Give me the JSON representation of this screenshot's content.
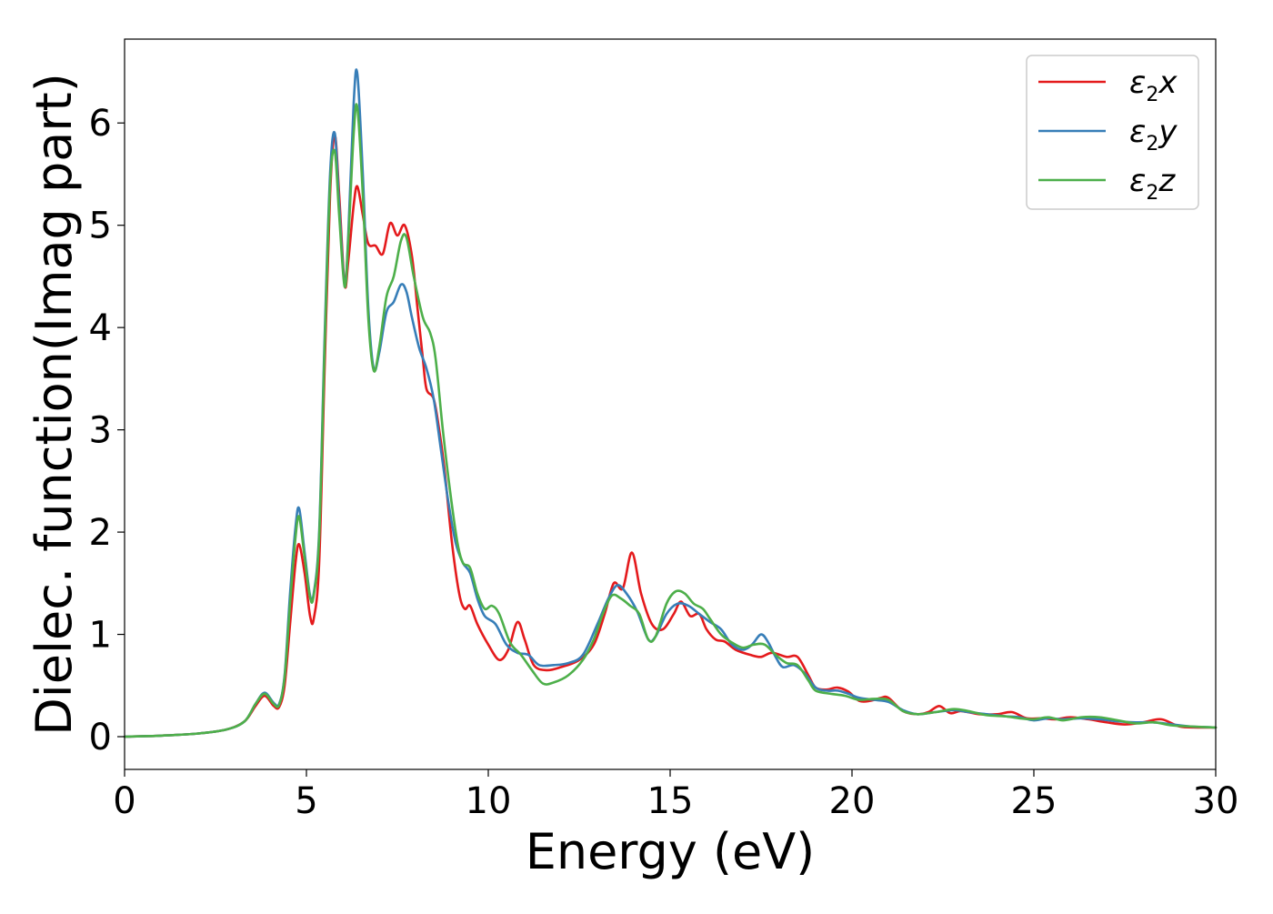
{
  "chart_data": {
    "type": "line",
    "title": "",
    "xlabel": "Energy (eV)",
    "ylabel": "Dielec. function(Imag part)",
    "xlim": [
      0,
      30
    ],
    "ylim": [
      -0.32,
      6.82
    ],
    "xticks": [
      0,
      5,
      10,
      15,
      20,
      25,
      30
    ],
    "yticks": [
      0,
      1,
      2,
      3,
      4,
      5,
      6
    ],
    "grid": false,
    "legend_position": "top-right",
    "series": [
      {
        "name": "ε2x",
        "legend": {
          "base": "ε",
          "sub": "2",
          "var": "x"
        },
        "color": "#e41a1c",
        "points": [
          [
            0,
            0.0
          ],
          [
            1,
            0.01
          ],
          [
            2,
            0.03
          ],
          [
            2.8,
            0.07
          ],
          [
            3.3,
            0.15
          ],
          [
            3.6,
            0.3
          ],
          [
            3.85,
            0.4
          ],
          [
            4.1,
            0.3
          ],
          [
            4.25,
            0.29
          ],
          [
            4.4,
            0.5
          ],
          [
            4.55,
            1.1
          ],
          [
            4.7,
            1.7
          ],
          [
            4.8,
            1.88
          ],
          [
            4.95,
            1.6
          ],
          [
            5.1,
            1.18
          ],
          [
            5.2,
            1.15
          ],
          [
            5.35,
            1.7
          ],
          [
            5.5,
            3.6
          ],
          [
            5.65,
            5.3
          ],
          [
            5.78,
            5.88
          ],
          [
            5.9,
            5.3
          ],
          [
            6.05,
            4.42
          ],
          [
            6.15,
            4.65
          ],
          [
            6.3,
            5.2
          ],
          [
            6.4,
            5.38
          ],
          [
            6.55,
            5.1
          ],
          [
            6.7,
            4.82
          ],
          [
            6.9,
            4.8
          ],
          [
            7.1,
            4.72
          ],
          [
            7.3,
            5.02
          ],
          [
            7.5,
            4.9
          ],
          [
            7.7,
            5.0
          ],
          [
            7.9,
            4.7
          ],
          [
            8.05,
            4.2
          ],
          [
            8.2,
            3.7
          ],
          [
            8.3,
            3.4
          ],
          [
            8.5,
            3.3
          ],
          [
            8.65,
            3.0
          ],
          [
            8.8,
            2.6
          ],
          [
            9.0,
            1.9
          ],
          [
            9.2,
            1.4
          ],
          [
            9.35,
            1.25
          ],
          [
            9.5,
            1.28
          ],
          [
            9.7,
            1.1
          ],
          [
            10.0,
            0.9
          ],
          [
            10.3,
            0.75
          ],
          [
            10.55,
            0.85
          ],
          [
            10.8,
            1.12
          ],
          [
            11.0,
            0.95
          ],
          [
            11.25,
            0.7
          ],
          [
            11.6,
            0.65
          ],
          [
            12.0,
            0.68
          ],
          [
            12.5,
            0.75
          ],
          [
            12.9,
            0.9
          ],
          [
            13.2,
            1.2
          ],
          [
            13.45,
            1.5
          ],
          [
            13.7,
            1.45
          ],
          [
            13.95,
            1.8
          ],
          [
            14.2,
            1.4
          ],
          [
            14.5,
            1.1
          ],
          [
            14.8,
            1.05
          ],
          [
            15.1,
            1.2
          ],
          [
            15.3,
            1.32
          ],
          [
            15.55,
            1.18
          ],
          [
            15.8,
            1.2
          ],
          [
            16.0,
            1.05
          ],
          [
            16.25,
            0.95
          ],
          [
            16.5,
            0.93
          ],
          [
            16.8,
            0.85
          ],
          [
            17.2,
            0.8
          ],
          [
            17.5,
            0.78
          ],
          [
            17.8,
            0.82
          ],
          [
            18.2,
            0.78
          ],
          [
            18.5,
            0.78
          ],
          [
            18.8,
            0.6
          ],
          [
            19.0,
            0.48
          ],
          [
            19.3,
            0.46
          ],
          [
            19.6,
            0.48
          ],
          [
            19.9,
            0.44
          ],
          [
            20.2,
            0.35
          ],
          [
            20.5,
            0.35
          ],
          [
            20.8,
            0.38
          ],
          [
            21.0,
            0.38
          ],
          [
            21.4,
            0.25
          ],
          [
            21.8,
            0.22
          ],
          [
            22.1,
            0.24
          ],
          [
            22.4,
            0.3
          ],
          [
            22.7,
            0.23
          ],
          [
            23.0,
            0.25
          ],
          [
            23.5,
            0.22
          ],
          [
            24.0,
            0.22
          ],
          [
            24.4,
            0.24
          ],
          [
            24.8,
            0.18
          ],
          [
            25.2,
            0.18
          ],
          [
            25.6,
            0.17
          ],
          [
            26.0,
            0.19
          ],
          [
            26.5,
            0.17
          ],
          [
            27.0,
            0.14
          ],
          [
            27.5,
            0.12
          ],
          [
            28.0,
            0.14
          ],
          [
            28.5,
            0.17
          ],
          [
            29.0,
            0.1
          ],
          [
            29.5,
            0.09
          ],
          [
            30.0,
            0.09
          ]
        ]
      },
      {
        "name": "ε2y",
        "legend": {
          "base": "ε",
          "sub": "2",
          "var": "y"
        },
        "color": "#377eb8",
        "points": [
          [
            0,
            0.0
          ],
          [
            1,
            0.01
          ],
          [
            2,
            0.03
          ],
          [
            2.8,
            0.07
          ],
          [
            3.3,
            0.15
          ],
          [
            3.6,
            0.32
          ],
          [
            3.85,
            0.43
          ],
          [
            4.1,
            0.33
          ],
          [
            4.25,
            0.32
          ],
          [
            4.4,
            0.6
          ],
          [
            4.55,
            1.4
          ],
          [
            4.7,
            2.05
          ],
          [
            4.8,
            2.23
          ],
          [
            4.95,
            1.8
          ],
          [
            5.1,
            1.38
          ],
          [
            5.2,
            1.4
          ],
          [
            5.35,
            2.0
          ],
          [
            5.5,
            3.9
          ],
          [
            5.65,
            5.5
          ],
          [
            5.78,
            5.9
          ],
          [
            5.9,
            5.2
          ],
          [
            6.05,
            4.42
          ],
          [
            6.15,
            4.9
          ],
          [
            6.3,
            6.2
          ],
          [
            6.4,
            6.48
          ],
          [
            6.55,
            5.5
          ],
          [
            6.7,
            4.2
          ],
          [
            6.85,
            3.6
          ],
          [
            7.0,
            3.75
          ],
          [
            7.2,
            4.15
          ],
          [
            7.4,
            4.25
          ],
          [
            7.6,
            4.42
          ],
          [
            7.75,
            4.35
          ],
          [
            7.9,
            4.1
          ],
          [
            8.1,
            3.8
          ],
          [
            8.3,
            3.6
          ],
          [
            8.5,
            3.3
          ],
          [
            8.7,
            2.8
          ],
          [
            8.9,
            2.3
          ],
          [
            9.1,
            1.9
          ],
          [
            9.3,
            1.7
          ],
          [
            9.5,
            1.6
          ],
          [
            9.7,
            1.35
          ],
          [
            9.9,
            1.18
          ],
          [
            10.2,
            1.1
          ],
          [
            10.5,
            0.9
          ],
          [
            10.8,
            0.82
          ],
          [
            11.1,
            0.8
          ],
          [
            11.4,
            0.7
          ],
          [
            11.8,
            0.7
          ],
          [
            12.2,
            0.72
          ],
          [
            12.6,
            0.8
          ],
          [
            13.0,
            1.1
          ],
          [
            13.3,
            1.35
          ],
          [
            13.55,
            1.48
          ],
          [
            13.8,
            1.4
          ],
          [
            14.1,
            1.22
          ],
          [
            14.4,
            0.95
          ],
          [
            14.6,
            0.98
          ],
          [
            14.9,
            1.2
          ],
          [
            15.2,
            1.3
          ],
          [
            15.5,
            1.28
          ],
          [
            15.8,
            1.2
          ],
          [
            16.1,
            1.12
          ],
          [
            16.4,
            1.05
          ],
          [
            16.7,
            0.9
          ],
          [
            17.0,
            0.85
          ],
          [
            17.25,
            0.9
          ],
          [
            17.5,
            1.0
          ],
          [
            17.7,
            0.92
          ],
          [
            17.9,
            0.78
          ],
          [
            18.1,
            0.68
          ],
          [
            18.4,
            0.7
          ],
          [
            18.7,
            0.62
          ],
          [
            19.0,
            0.48
          ],
          [
            19.3,
            0.45
          ],
          [
            19.6,
            0.45
          ],
          [
            19.9,
            0.42
          ],
          [
            20.2,
            0.38
          ],
          [
            20.6,
            0.36
          ],
          [
            21.0,
            0.34
          ],
          [
            21.4,
            0.26
          ],
          [
            21.8,
            0.22
          ],
          [
            22.3,
            0.24
          ],
          [
            22.8,
            0.26
          ],
          [
            23.2,
            0.24
          ],
          [
            23.7,
            0.22
          ],
          [
            24.2,
            0.2
          ],
          [
            24.6,
            0.19
          ],
          [
            25.0,
            0.16
          ],
          [
            25.4,
            0.18
          ],
          [
            25.8,
            0.17
          ],
          [
            26.3,
            0.18
          ],
          [
            26.8,
            0.17
          ],
          [
            27.3,
            0.15
          ],
          [
            27.8,
            0.14
          ],
          [
            28.3,
            0.14
          ],
          [
            28.8,
            0.12
          ],
          [
            29.3,
            0.1
          ],
          [
            30.0,
            0.09
          ]
        ]
      },
      {
        "name": "ε2z",
        "legend": {
          "base": "ε",
          "sub": "2",
          "var": "z"
        },
        "color": "#4daf4a",
        "points": [
          [
            0,
            0.0
          ],
          [
            1,
            0.01
          ],
          [
            2,
            0.03
          ],
          [
            2.8,
            0.07
          ],
          [
            3.3,
            0.15
          ],
          [
            3.6,
            0.32
          ],
          [
            3.85,
            0.42
          ],
          [
            4.1,
            0.32
          ],
          [
            4.25,
            0.31
          ],
          [
            4.4,
            0.58
          ],
          [
            4.55,
            1.3
          ],
          [
            4.7,
            1.95
          ],
          [
            4.8,
            2.15
          ],
          [
            4.95,
            1.75
          ],
          [
            5.1,
            1.36
          ],
          [
            5.2,
            1.38
          ],
          [
            5.35,
            1.95
          ],
          [
            5.5,
            3.8
          ],
          [
            5.65,
            5.4
          ],
          [
            5.78,
            5.72
          ],
          [
            5.9,
            5.1
          ],
          [
            6.05,
            4.4
          ],
          [
            6.15,
            4.85
          ],
          [
            6.3,
            5.9
          ],
          [
            6.4,
            6.15
          ],
          [
            6.55,
            5.3
          ],
          [
            6.7,
            4.1
          ],
          [
            6.85,
            3.58
          ],
          [
            7.0,
            3.8
          ],
          [
            7.2,
            4.3
          ],
          [
            7.4,
            4.5
          ],
          [
            7.6,
            4.85
          ],
          [
            7.75,
            4.88
          ],
          [
            7.95,
            4.5
          ],
          [
            8.2,
            4.1
          ],
          [
            8.4,
            3.95
          ],
          [
            8.55,
            3.7
          ],
          [
            8.75,
            3.0
          ],
          [
            8.95,
            2.4
          ],
          [
            9.15,
            1.9
          ],
          [
            9.3,
            1.7
          ],
          [
            9.5,
            1.65
          ],
          [
            9.7,
            1.4
          ],
          [
            9.9,
            1.25
          ],
          [
            10.1,
            1.28
          ],
          [
            10.3,
            1.2
          ],
          [
            10.6,
            0.92
          ],
          [
            10.9,
            0.8
          ],
          [
            11.2,
            0.65
          ],
          [
            11.5,
            0.52
          ],
          [
            11.8,
            0.53
          ],
          [
            12.2,
            0.6
          ],
          [
            12.6,
            0.75
          ],
          [
            12.9,
            0.95
          ],
          [
            13.15,
            1.2
          ],
          [
            13.4,
            1.38
          ],
          [
            13.65,
            1.35
          ],
          [
            13.9,
            1.28
          ],
          [
            14.15,
            1.2
          ],
          [
            14.4,
            0.95
          ],
          [
            14.6,
            0.98
          ],
          [
            14.9,
            1.3
          ],
          [
            15.15,
            1.42
          ],
          [
            15.4,
            1.4
          ],
          [
            15.65,
            1.3
          ],
          [
            15.9,
            1.25
          ],
          [
            16.1,
            1.15
          ],
          [
            16.4,
            1.0
          ],
          [
            16.7,
            0.92
          ],
          [
            17.0,
            0.87
          ],
          [
            17.3,
            0.9
          ],
          [
            17.6,
            0.9
          ],
          [
            17.9,
            0.8
          ],
          [
            18.2,
            0.72
          ],
          [
            18.5,
            0.7
          ],
          [
            18.8,
            0.55
          ],
          [
            19.0,
            0.45
          ],
          [
            19.4,
            0.42
          ],
          [
            19.8,
            0.4
          ],
          [
            20.2,
            0.36
          ],
          [
            20.6,
            0.37
          ],
          [
            21.0,
            0.36
          ],
          [
            21.4,
            0.25
          ],
          [
            21.8,
            0.22
          ],
          [
            22.3,
            0.24
          ],
          [
            22.8,
            0.27
          ],
          [
            23.2,
            0.25
          ],
          [
            23.7,
            0.21
          ],
          [
            24.2,
            0.2
          ],
          [
            24.6,
            0.18
          ],
          [
            25.0,
            0.17
          ],
          [
            25.4,
            0.19
          ],
          [
            25.8,
            0.16
          ],
          [
            26.3,
            0.19
          ],
          [
            26.8,
            0.19
          ],
          [
            27.3,
            0.16
          ],
          [
            27.8,
            0.13
          ],
          [
            28.3,
            0.14
          ],
          [
            28.8,
            0.11
          ],
          [
            29.3,
            0.1
          ],
          [
            30.0,
            0.09
          ]
        ]
      }
    ]
  }
}
